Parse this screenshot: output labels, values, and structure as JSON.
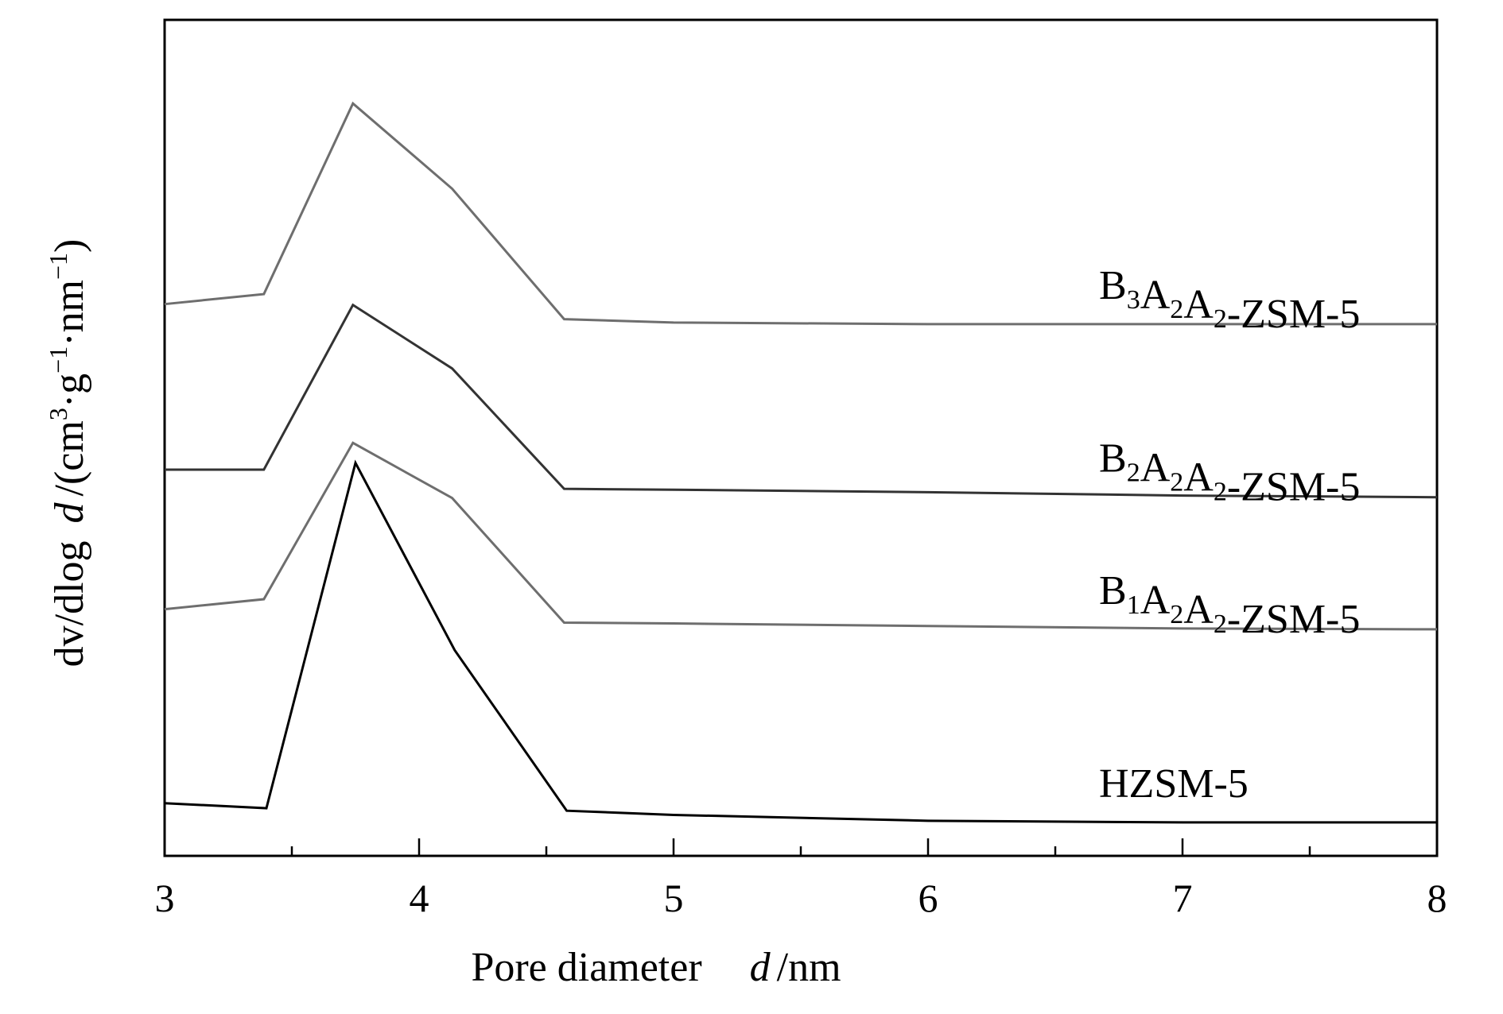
{
  "chart_data": {
    "type": "line",
    "title": "",
    "xlabel": "Pore diameter d /nm",
    "xlabel_parts": {
      "text": "Pore diameter",
      "var": "d",
      "unit": "/nm"
    },
    "ylabel": "dv/dlog d /(cm3·g-1·nm-1)",
    "ylabel_parts": {
      "prefix": "dv/dlog",
      "var": "d",
      "unit_open": "/(cm",
      "sup1": "3",
      "mid1": "·g",
      "sup2": "−1",
      "mid2": "·nm",
      "sup3": "−1",
      "unit_close": ")"
    },
    "xlim": [
      3,
      8
    ],
    "ylim": [
      0,
      100
    ],
    "y_ticks_labeled": false,
    "x_ticks": [
      3,
      4,
      5,
      6,
      7,
      8
    ],
    "x_tick_labels": [
      "3",
      "4",
      "5",
      "6",
      "7",
      "8"
    ],
    "x_minor_ticks": [
      3.5,
      4.5,
      5.5,
      6.5,
      7.5
    ],
    "grid": false,
    "legend": "inline labels at right",
    "series": [
      {
        "name": "B3A2A2-ZSM-5",
        "label_parts": [
          [
            "B",
            ""
          ],
          [
            "3",
            "sub"
          ],
          [
            "A",
            ""
          ],
          [
            "2",
            "sub"
          ],
          [
            "A",
            ""
          ],
          [
            "2",
            "sub"
          ],
          [
            "-ZSM-5",
            ""
          ]
        ],
        "color": "#6e6e6e",
        "x": [
          3.0,
          3.39,
          3.74,
          4.13,
          4.57,
          5.0,
          6.0,
          7.0,
          8.0
        ],
        "y": [
          66.0,
          67.2,
          90.0,
          79.8,
          64.2,
          63.8,
          63.6,
          63.6,
          63.6
        ]
      },
      {
        "name": "B2A2A2-ZSM-5",
        "label_parts": [
          [
            "B",
            ""
          ],
          [
            "2",
            "sub"
          ],
          [
            "A",
            ""
          ],
          [
            "2",
            "sub"
          ],
          [
            "A",
            ""
          ],
          [
            "2",
            "sub"
          ],
          [
            "-ZSM-5",
            ""
          ]
        ],
        "color": "#333333",
        "x": [
          3.0,
          3.39,
          3.74,
          4.13,
          4.57,
          5.0,
          6.0,
          7.0,
          8.0
        ],
        "y": [
          46.2,
          46.2,
          65.9,
          58.3,
          43.9,
          43.8,
          43.5,
          43.1,
          42.9
        ]
      },
      {
        "name": "B1A2A2-ZSM-5",
        "label_parts": [
          [
            "B",
            ""
          ],
          [
            "1",
            "sub"
          ],
          [
            "A",
            ""
          ],
          [
            "2",
            "sub"
          ],
          [
            "A",
            ""
          ],
          [
            "2",
            "sub"
          ],
          [
            "-ZSM-5",
            ""
          ]
        ],
        "color": "#6e6e6e",
        "x": [
          3.0,
          3.39,
          3.74,
          4.13,
          4.57,
          5.0,
          6.0,
          7.0,
          8.0
        ],
        "y": [
          29.5,
          30.7,
          49.4,
          42.8,
          27.9,
          27.8,
          27.5,
          27.2,
          27.1
        ]
      },
      {
        "name": "HZSM-5",
        "label_parts": [
          [
            "HZSM-5",
            ""
          ]
        ],
        "color": "#000000",
        "x": [
          3.0,
          3.4,
          3.75,
          4.14,
          4.58,
          5.0,
          6.0,
          7.0,
          8.0
        ],
        "y": [
          6.3,
          5.7,
          47.0,
          24.6,
          5.4,
          4.9,
          4.2,
          4.0,
          4.0
        ]
      }
    ]
  }
}
